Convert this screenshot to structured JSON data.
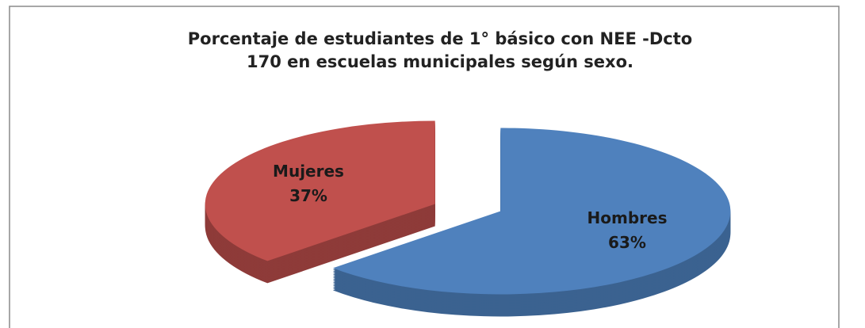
{
  "chart_data": {
    "type": "pie",
    "title": [
      "Porcentaje de estudiantes de 1° básico con NEE -Dcto",
      "170  en escuelas municipales según sexo."
    ],
    "categories": [
      "Hombres",
      "Mujeres"
    ],
    "values": [
      63,
      37
    ],
    "value_labels": [
      "63%",
      "37%"
    ],
    "colors": [
      "#4f81bd",
      "#c0504d"
    ],
    "side_colors": [
      "#3b6290",
      "#8e3b39"
    ]
  }
}
